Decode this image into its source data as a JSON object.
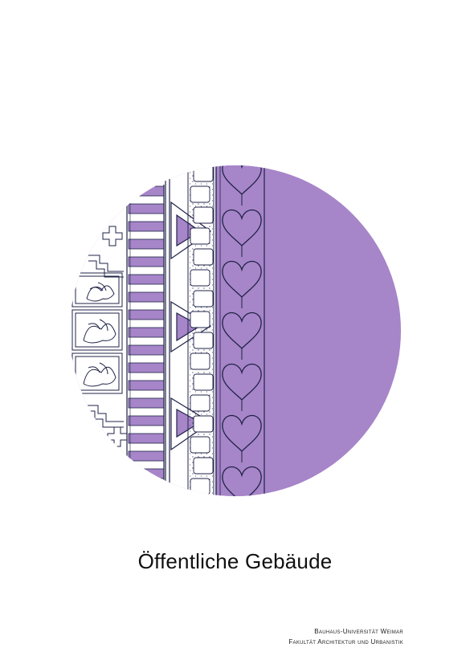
{
  "page": {
    "title": "Öffentliche Gebäude",
    "imprint": {
      "line1": "Bauhaus-Universität Weimar",
      "line2": "Fakultät Architektur und Urbanistik"
    }
  },
  "colors": {
    "background": "#ffffff",
    "circle_fill": "#a785c9",
    "ink": "#1f2347",
    "title_text": "#111111"
  },
  "illustration": {
    "description_icon": "ornamental-band-drawing-icon"
  }
}
